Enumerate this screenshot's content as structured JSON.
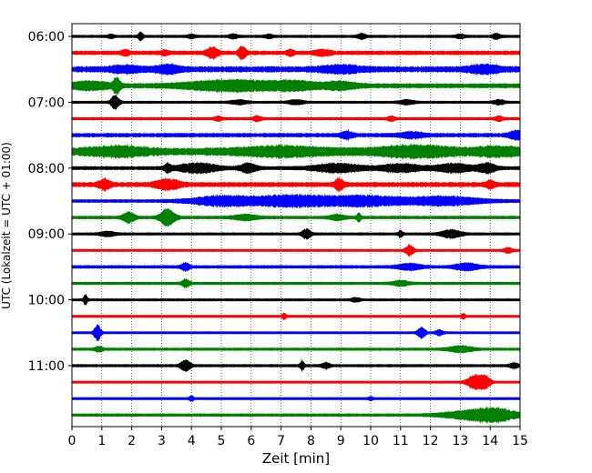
{
  "chart_data": {
    "type": "line",
    "title": "",
    "xlabel": "Zeit  [min]",
    "ylabel": "UTC (Lokalzeit = UTC + 01:00)",
    "xlim": [
      0,
      15
    ],
    "x_ticks": [
      0,
      1,
      2,
      3,
      4,
      5,
      6,
      7,
      8,
      9,
      10,
      11,
      12,
      13,
      14,
      15
    ],
    "y_tick_labels": [
      "06:00",
      "07:00",
      "08:00",
      "09:00",
      "10:00",
      "11:00"
    ],
    "y_tick_rows": [
      0,
      4,
      8,
      12,
      16,
      20
    ],
    "grid": "vertical dotted lines at each minute",
    "legend": "none",
    "row_interval_min": 15,
    "color_cycle": [
      "#000000",
      "#ff0000",
      "#0000ff",
      "#008000"
    ],
    "traces": [
      {
        "time": "06:00",
        "color": "#000000",
        "noise": 0.06,
        "events": [
          {
            "t": 1.3,
            "amp": 0.2,
            "w": 0.08
          },
          {
            "t": 2.3,
            "amp": 0.45,
            "w": 0.06
          },
          {
            "t": 4.0,
            "amp": 0.2,
            "w": 0.1
          },
          {
            "t": 5.4,
            "amp": 0.25,
            "w": 0.1
          },
          {
            "t": 6.6,
            "amp": 0.2,
            "w": 0.1
          },
          {
            "t": 9.7,
            "amp": 0.3,
            "w": 0.1
          },
          {
            "t": 13.0,
            "amp": 0.25,
            "w": 0.1
          },
          {
            "t": 14.2,
            "amp": 0.3,
            "w": 0.1
          }
        ]
      },
      {
        "time": "06:15",
        "color": "#ff0000",
        "noise": 0.12,
        "events": [
          {
            "t": 1.8,
            "amp": 0.25,
            "w": 0.1
          },
          {
            "t": 3.1,
            "amp": 0.25,
            "w": 0.1
          },
          {
            "t": 4.7,
            "amp": 0.6,
            "w": 0.15
          },
          {
            "t": 5.7,
            "amp": 0.7,
            "w": 0.1
          },
          {
            "t": 7.3,
            "amp": 0.3,
            "w": 0.1
          },
          {
            "t": 8.4,
            "amp": 0.3,
            "w": 0.2
          }
        ]
      },
      {
        "time": "06:30",
        "color": "#0000ff",
        "noise": 0.2,
        "events": [
          {
            "t": 1.8,
            "amp": 0.3,
            "w": 0.4
          },
          {
            "t": 3.2,
            "amp": 0.4,
            "w": 0.3
          },
          {
            "t": 9.0,
            "amp": 0.35,
            "w": 0.5
          },
          {
            "t": 13.8,
            "amp": 0.4,
            "w": 0.4
          }
        ]
      },
      {
        "time": "06:45",
        "color": "#008000",
        "noise": 0.15,
        "events": [
          {
            "t": 0.6,
            "amp": 0.45,
            "w": 0.5
          },
          {
            "t": 1.5,
            "amp": 0.9,
            "w": 0.08
          },
          {
            "t": 5.4,
            "amp": 0.6,
            "w": 1.2
          },
          {
            "t": 7.5,
            "amp": 0.4,
            "w": 0.6
          },
          {
            "t": 9.0,
            "amp": 0.4,
            "w": 0.4
          }
        ]
      },
      {
        "time": "07:00",
        "color": "#000000",
        "noise": 0.05,
        "events": [
          {
            "t": 1.45,
            "amp": 0.9,
            "w": 0.1
          },
          {
            "t": 5.6,
            "amp": 0.25,
            "w": 0.2
          },
          {
            "t": 7.5,
            "amp": 0.25,
            "w": 0.2
          },
          {
            "t": 11.2,
            "amp": 0.25,
            "w": 0.2
          },
          {
            "t": 14.3,
            "amp": 0.25,
            "w": 0.15
          }
        ]
      },
      {
        "time": "07:15",
        "color": "#ff0000",
        "noise": 0.06,
        "events": [
          {
            "t": 4.9,
            "amp": 0.25,
            "w": 0.1
          },
          {
            "t": 6.2,
            "amp": 0.3,
            "w": 0.1
          },
          {
            "t": 10.7,
            "amp": 0.25,
            "w": 0.1
          },
          {
            "t": 14.3,
            "amp": 0.25,
            "w": 0.1
          }
        ]
      },
      {
        "time": "07:30",
        "color": "#0000ff",
        "noise": 0.12,
        "events": [
          {
            "t": 9.2,
            "amp": 0.4,
            "w": 0.15
          },
          {
            "t": 11.4,
            "amp": 0.3,
            "w": 0.3
          },
          {
            "t": 14.9,
            "amp": 0.45,
            "w": 0.2
          }
        ]
      },
      {
        "time": "07:45",
        "color": "#008000",
        "noise": 0.25,
        "events": [
          {
            "t": 1.5,
            "amp": 0.45,
            "w": 0.8
          },
          {
            "t": 7.0,
            "amp": 0.45,
            "w": 1.2
          },
          {
            "t": 11.5,
            "amp": 0.55,
            "w": 1.0
          },
          {
            "t": 14.3,
            "amp": 0.4,
            "w": 0.6
          }
        ]
      },
      {
        "time": "08:00",
        "color": "#000000",
        "noise": 0.1,
        "events": [
          {
            "t": 3.2,
            "amp": 0.45,
            "w": 0.08
          },
          {
            "t": 4.2,
            "amp": 0.55,
            "w": 0.5
          },
          {
            "t": 5.9,
            "amp": 0.55,
            "w": 0.2
          },
          {
            "t": 8.9,
            "amp": 0.5,
            "w": 0.6
          },
          {
            "t": 11.0,
            "amp": 0.45,
            "w": 0.5
          },
          {
            "t": 12.8,
            "amp": 0.45,
            "w": 0.5
          },
          {
            "t": 13.9,
            "amp": 0.55,
            "w": 0.2
          }
        ]
      },
      {
        "time": "08:15",
        "color": "#ff0000",
        "noise": 0.15,
        "events": [
          {
            "t": 1.1,
            "amp": 0.55,
            "w": 0.15
          },
          {
            "t": 3.2,
            "amp": 0.55,
            "w": 0.3
          },
          {
            "t": 8.95,
            "amp": 0.7,
            "w": 0.1
          },
          {
            "t": 14.0,
            "amp": 0.45,
            "w": 0.1
          }
        ]
      },
      {
        "time": "08:30",
        "color": "#0000ff",
        "noise": 0.08,
        "events": [
          {
            "t": 5.0,
            "amp": 0.55,
            "w": 0.8
          },
          {
            "t": 7.3,
            "amp": 0.65,
            "w": 1.0
          },
          {
            "t": 9.8,
            "amp": 0.6,
            "w": 1.0
          },
          {
            "t": 12.5,
            "amp": 0.5,
            "w": 0.9
          }
        ]
      },
      {
        "time": "08:45",
        "color": "#008000",
        "noise": 0.08,
        "events": [
          {
            "t": 1.9,
            "amp": 0.6,
            "w": 0.15
          },
          {
            "t": 3.2,
            "amp": 1.0,
            "w": 0.18
          },
          {
            "t": 5.8,
            "amp": 0.3,
            "w": 0.3
          },
          {
            "t": 8.9,
            "amp": 0.3,
            "w": 0.2
          },
          {
            "t": 9.6,
            "amp": 0.5,
            "w": 0.05
          }
        ]
      },
      {
        "time": "09:00",
        "color": "#000000",
        "noise": 0.06,
        "events": [
          {
            "t": 1.2,
            "amp": 0.25,
            "w": 0.2
          },
          {
            "t": 7.85,
            "amp": 0.6,
            "w": 0.1
          },
          {
            "t": 11.0,
            "amp": 0.45,
            "w": 0.05
          },
          {
            "t": 12.7,
            "amp": 0.45,
            "w": 0.25
          }
        ]
      },
      {
        "time": "09:15",
        "color": "#ff0000",
        "noise": 0.05,
        "events": [
          {
            "t": 11.3,
            "amp": 0.65,
            "w": 0.1
          },
          {
            "t": 14.6,
            "amp": 0.3,
            "w": 0.1
          }
        ]
      },
      {
        "time": "09:30",
        "color": "#0000ff",
        "noise": 0.08,
        "events": [
          {
            "t": 3.8,
            "amp": 0.45,
            "w": 0.1
          },
          {
            "t": 11.3,
            "amp": 0.35,
            "w": 0.3
          },
          {
            "t": 13.2,
            "amp": 0.4,
            "w": 0.3
          }
        ]
      },
      {
        "time": "09:45",
        "color": "#008000",
        "noise": 0.06,
        "events": [
          {
            "t": 3.8,
            "amp": 0.45,
            "w": 0.1
          },
          {
            "t": 11.0,
            "amp": 0.3,
            "w": 0.2
          }
        ]
      },
      {
        "time": "10:00",
        "color": "#000000",
        "noise": 0.05,
        "events": [
          {
            "t": 0.45,
            "amp": 0.55,
            "w": 0.05
          },
          {
            "t": 9.5,
            "amp": 0.25,
            "w": 0.1
          }
        ]
      },
      {
        "time": "10:15",
        "color": "#ff0000",
        "noise": 0.04,
        "events": [
          {
            "t": 7.1,
            "amp": 0.35,
            "w": 0.05
          },
          {
            "t": 13.1,
            "amp": 0.3,
            "w": 0.05
          }
        ]
      },
      {
        "time": "10:30",
        "color": "#0000ff",
        "noise": 0.04,
        "events": [
          {
            "t": 0.85,
            "amp": 1.0,
            "w": 0.08
          },
          {
            "t": 11.7,
            "amp": 0.65,
            "w": 0.1
          },
          {
            "t": 12.3,
            "amp": 0.3,
            "w": 0.1
          }
        ]
      },
      {
        "time": "10:45",
        "color": "#008000",
        "noise": 0.06,
        "events": [
          {
            "t": 0.9,
            "amp": 0.3,
            "w": 0.1
          },
          {
            "t": 13.0,
            "amp": 0.35,
            "w": 0.3
          }
        ]
      },
      {
        "time": "11:00",
        "color": "#000000",
        "noise": 0.06,
        "events": [
          {
            "t": 3.8,
            "amp": 0.7,
            "w": 0.12
          },
          {
            "t": 7.7,
            "amp": 0.6,
            "w": 0.05
          },
          {
            "t": 8.5,
            "amp": 0.35,
            "w": 0.1
          },
          {
            "t": 14.8,
            "amp": 0.3,
            "w": 0.1
          }
        ]
      },
      {
        "time": "11:15",
        "color": "#ff0000",
        "noise": 0.04,
        "events": [
          {
            "t": 13.5,
            "amp": 0.85,
            "w": 0.2
          },
          {
            "t": 13.85,
            "amp": 0.7,
            "w": 0.12
          }
        ]
      },
      {
        "time": "11:30",
        "color": "#0000ff",
        "noise": 0.05,
        "events": [
          {
            "t": 4.0,
            "amp": 0.3,
            "w": 0.05
          },
          {
            "t": 10.0,
            "amp": 0.2,
            "w": 0.05
          }
        ]
      },
      {
        "time": "11:45",
        "color": "#008000",
        "noise": 0.07,
        "events": [
          {
            "t": 13.3,
            "amp": 0.45,
            "w": 0.7
          },
          {
            "t": 14.2,
            "amp": 0.65,
            "w": 0.5
          }
        ]
      }
    ]
  }
}
